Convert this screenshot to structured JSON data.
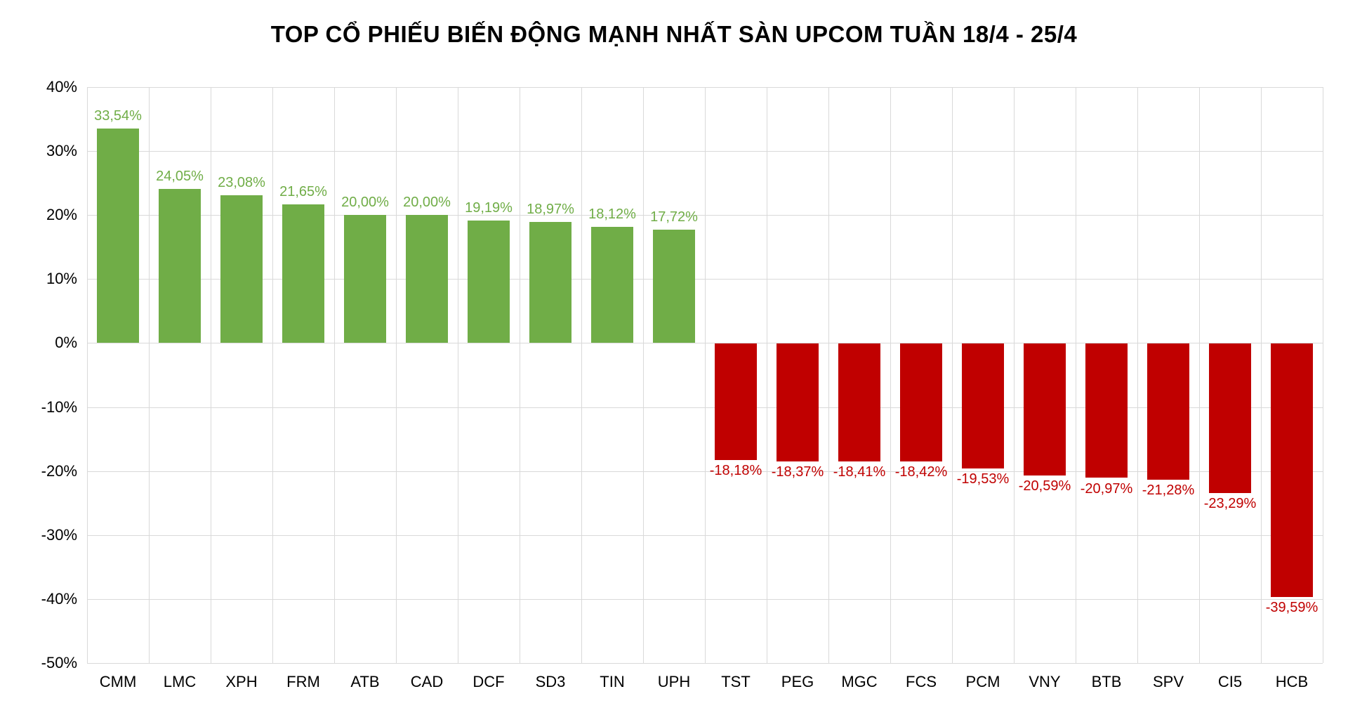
{
  "title": "TOP CỔ PHIẾU BIẾN ĐỘNG MẠNH NHẤT SÀN UPCOM TUẦN 18/4 - 25/4",
  "colors": {
    "positive": "#70AD47",
    "negative": "#C00000",
    "gridline": "#D9D9D9",
    "axis_text": "#000000",
    "background": "#FFFFFF"
  },
  "chart_data": {
    "type": "bar",
    "title": "TOP CỔ PHIẾU BIẾN ĐỘNG MẠNH NHẤT SÀN UPCOM TUẦN 18/4 - 25/4",
    "categories": [
      "CMM",
      "LMC",
      "XPH",
      "FRM",
      "ATB",
      "CAD",
      "DCF",
      "SD3",
      "TIN",
      "UPH",
      "TST",
      "PEG",
      "MGC",
      "FCS",
      "PCM",
      "VNY",
      "BTB",
      "SPV",
      "CI5",
      "HCB"
    ],
    "values": [
      33.54,
      24.05,
      23.08,
      21.65,
      20.0,
      20.0,
      19.19,
      18.97,
      18.12,
      17.72,
      -18.18,
      -18.37,
      -18.41,
      -18.42,
      -19.53,
      -20.59,
      -20.97,
      -21.28,
      -23.29,
      -39.59
    ],
    "value_labels": [
      "33,54%",
      "24,05%",
      "23,08%",
      "21,65%",
      "20,00%",
      "20,00%",
      "19,19%",
      "18,97%",
      "18,12%",
      "17,72%",
      "-18,18%",
      "-18,37%",
      "-18,41%",
      "-18,42%",
      "-19,53%",
      "-20,59%",
      "-20,97%",
      "-21,28%",
      "-23,29%",
      "-39,59%"
    ],
    "xlabel": "",
    "ylabel": "",
    "ylim": [
      -50,
      40
    ],
    "ytick_step": 10,
    "ytick_labels": [
      "40%",
      "30%",
      "20%",
      "10%",
      "0%",
      "-10%",
      "-20%",
      "-30%",
      "-40%",
      "-50%"
    ],
    "grid": true,
    "legend_position": "none"
  }
}
